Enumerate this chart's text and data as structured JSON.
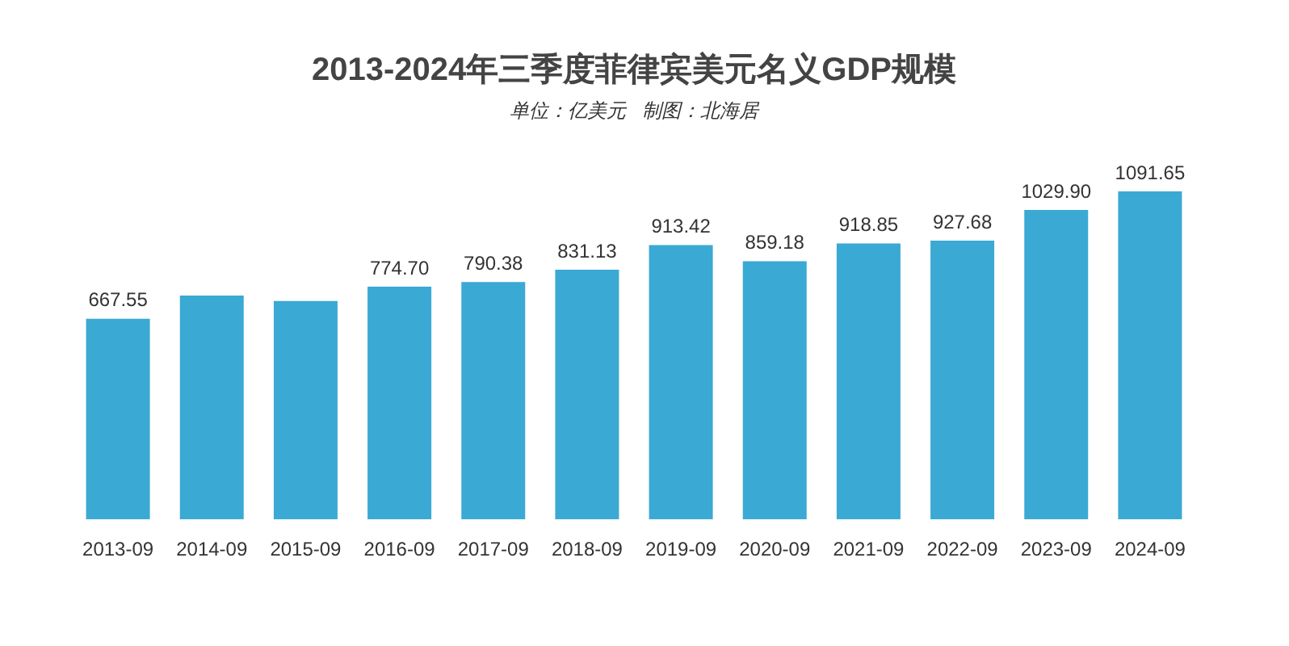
{
  "chart_data": {
    "type": "bar",
    "title": "2013-2024年三季度菲律宾美元名义GDP规模",
    "subtitle": "单位：亿美元   制图：北海居",
    "categories": [
      "2013-09",
      "2014-09",
      "2015-09",
      "2016-09",
      "2017-09",
      "2018-09",
      "2019-09",
      "2020-09",
      "2021-09",
      "2022-09",
      "2023-09",
      "2024-09"
    ],
    "values": [
      667.55,
      745,
      727,
      774.7,
      790.38,
      831.13,
      913.42,
      859.18,
      918.85,
      927.68,
      1029.9,
      1091.65
    ],
    "value_labels": [
      "667.55",
      null,
      null,
      "774.70",
      "790.38",
      "831.13",
      "913.42",
      "859.18",
      "918.85",
      "927.68",
      "1029.90",
      "1091.65"
    ],
    "color": "#3aa9d4"
  }
}
